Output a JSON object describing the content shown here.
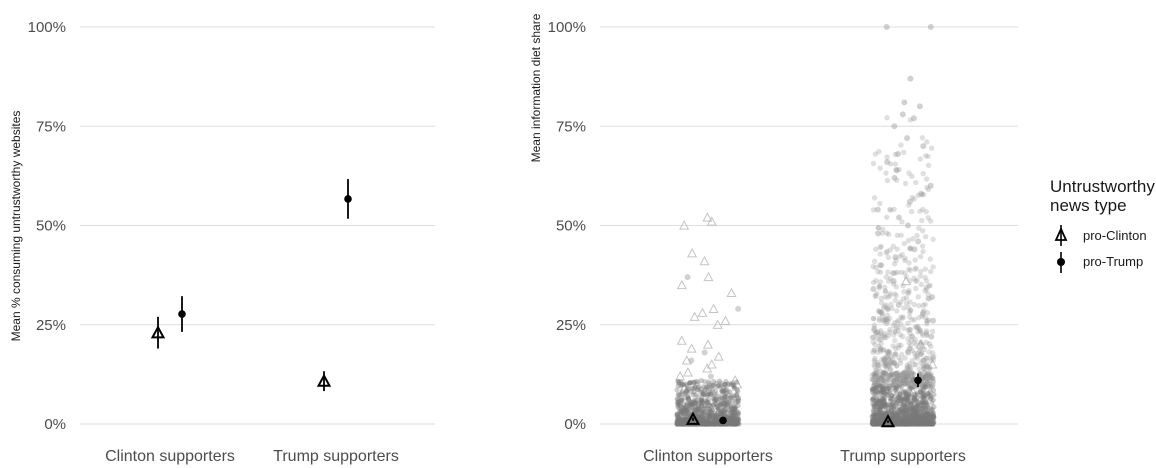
{
  "chart_data": [
    {
      "type": "scatter",
      "title": "",
      "xlabel": "",
      "ylabel": "Mean % consuming untrustworthy websites",
      "ylim": [
        0,
        1
      ],
      "yticks": [
        "0%",
        "25%",
        "50%",
        "75%",
        "100%"
      ],
      "categories": [
        "Clinton supporters",
        "Trump supporters"
      ],
      "grid": true,
      "series": [
        {
          "name": "pro-Clinton",
          "marker": "triangle",
          "values": [
            0.23,
            0.108
          ],
          "ci": [
            [
              0.19,
              0.27
            ],
            [
              0.083,
              0.133
            ]
          ]
        },
        {
          "name": "pro-Trump",
          "marker": "circle",
          "values": [
            0.277,
            0.567
          ],
          "ci": [
            [
              0.232,
              0.322
            ],
            [
              0.517,
              0.617
            ]
          ]
        }
      ]
    },
    {
      "type": "scatter",
      "title": "",
      "xlabel": "",
      "ylabel": "Mean information diet share",
      "ylim": [
        0,
        1
      ],
      "yticks": [
        "0%",
        "25%",
        "50%",
        "75%",
        "100%"
      ],
      "categories": [
        "Clinton supporters",
        "Trump supporters"
      ],
      "grid": true,
      "series": [
        {
          "name": "pro-Clinton",
          "marker": "triangle",
          "values": [
            0.012,
            0.006
          ],
          "ci": [
            [
              0.008,
              0.016
            ],
            [
              0.003,
              0.009
            ]
          ]
        },
        {
          "name": "pro-Trump",
          "marker": "circle",
          "values": [
            0.009,
            0.11
          ],
          "ci": [
            [
              0.007,
              0.011
            ],
            [
              0.093,
              0.127
            ]
          ]
        }
      ],
      "jitter_points": {
        "Clinton supporters": {
          "pro-Clinton": [
            0.52,
            0.51,
            0.5,
            0.43,
            0.41,
            0.37,
            0.35,
            0.33,
            0.29,
            0.28,
            0.27,
            0.26,
            0.25,
            0.21,
            0.2,
            0.19,
            0.17,
            0.16,
            0.15,
            0.14,
            0.13,
            0.12,
            0.11,
            0.1,
            0.09,
            0.08,
            0.07,
            0.06,
            0.05,
            0.04,
            0.03,
            0.02
          ],
          "pro-Trump": [
            0.37,
            0.29,
            0.18,
            0.16,
            0.12,
            0.1,
            0.08,
            0.06,
            0.05,
            0.04,
            0.03,
            0.02,
            0.01
          ]
        },
        "Trump supporters": {
          "pro-Clinton": [
            0.36,
            0.2,
            0.15,
            0.12,
            0.08,
            0.06,
            0.04,
            0.02,
            0.01
          ],
          "pro-Trump": [
            1.0,
            1.0,
            0.87,
            0.81,
            0.8,
            0.78,
            0.77,
            0.75,
            0.72,
            0.7,
            0.68,
            0.66,
            0.64,
            0.62,
            0.6,
            0.58,
            0.56,
            0.54,
            0.52,
            0.5,
            0.48,
            0.46,
            0.44,
            0.42,
            0.4,
            0.38,
            0.36,
            0.34,
            0.32,
            0.3,
            0.28,
            0.26,
            0.24,
            0.22,
            0.2,
            0.18,
            0.16,
            0.14,
            0.12,
            0.1,
            0.08,
            0.06,
            0.04,
            0.02
          ]
        }
      }
    }
  ],
  "legend": {
    "title_line1": "Untrustworthy",
    "title_line2": "news type",
    "items": [
      {
        "label": "pro-Clinton",
        "marker": "triangle"
      },
      {
        "label": "pro-Trump",
        "marker": "circle"
      }
    ],
    "placement": "right"
  }
}
